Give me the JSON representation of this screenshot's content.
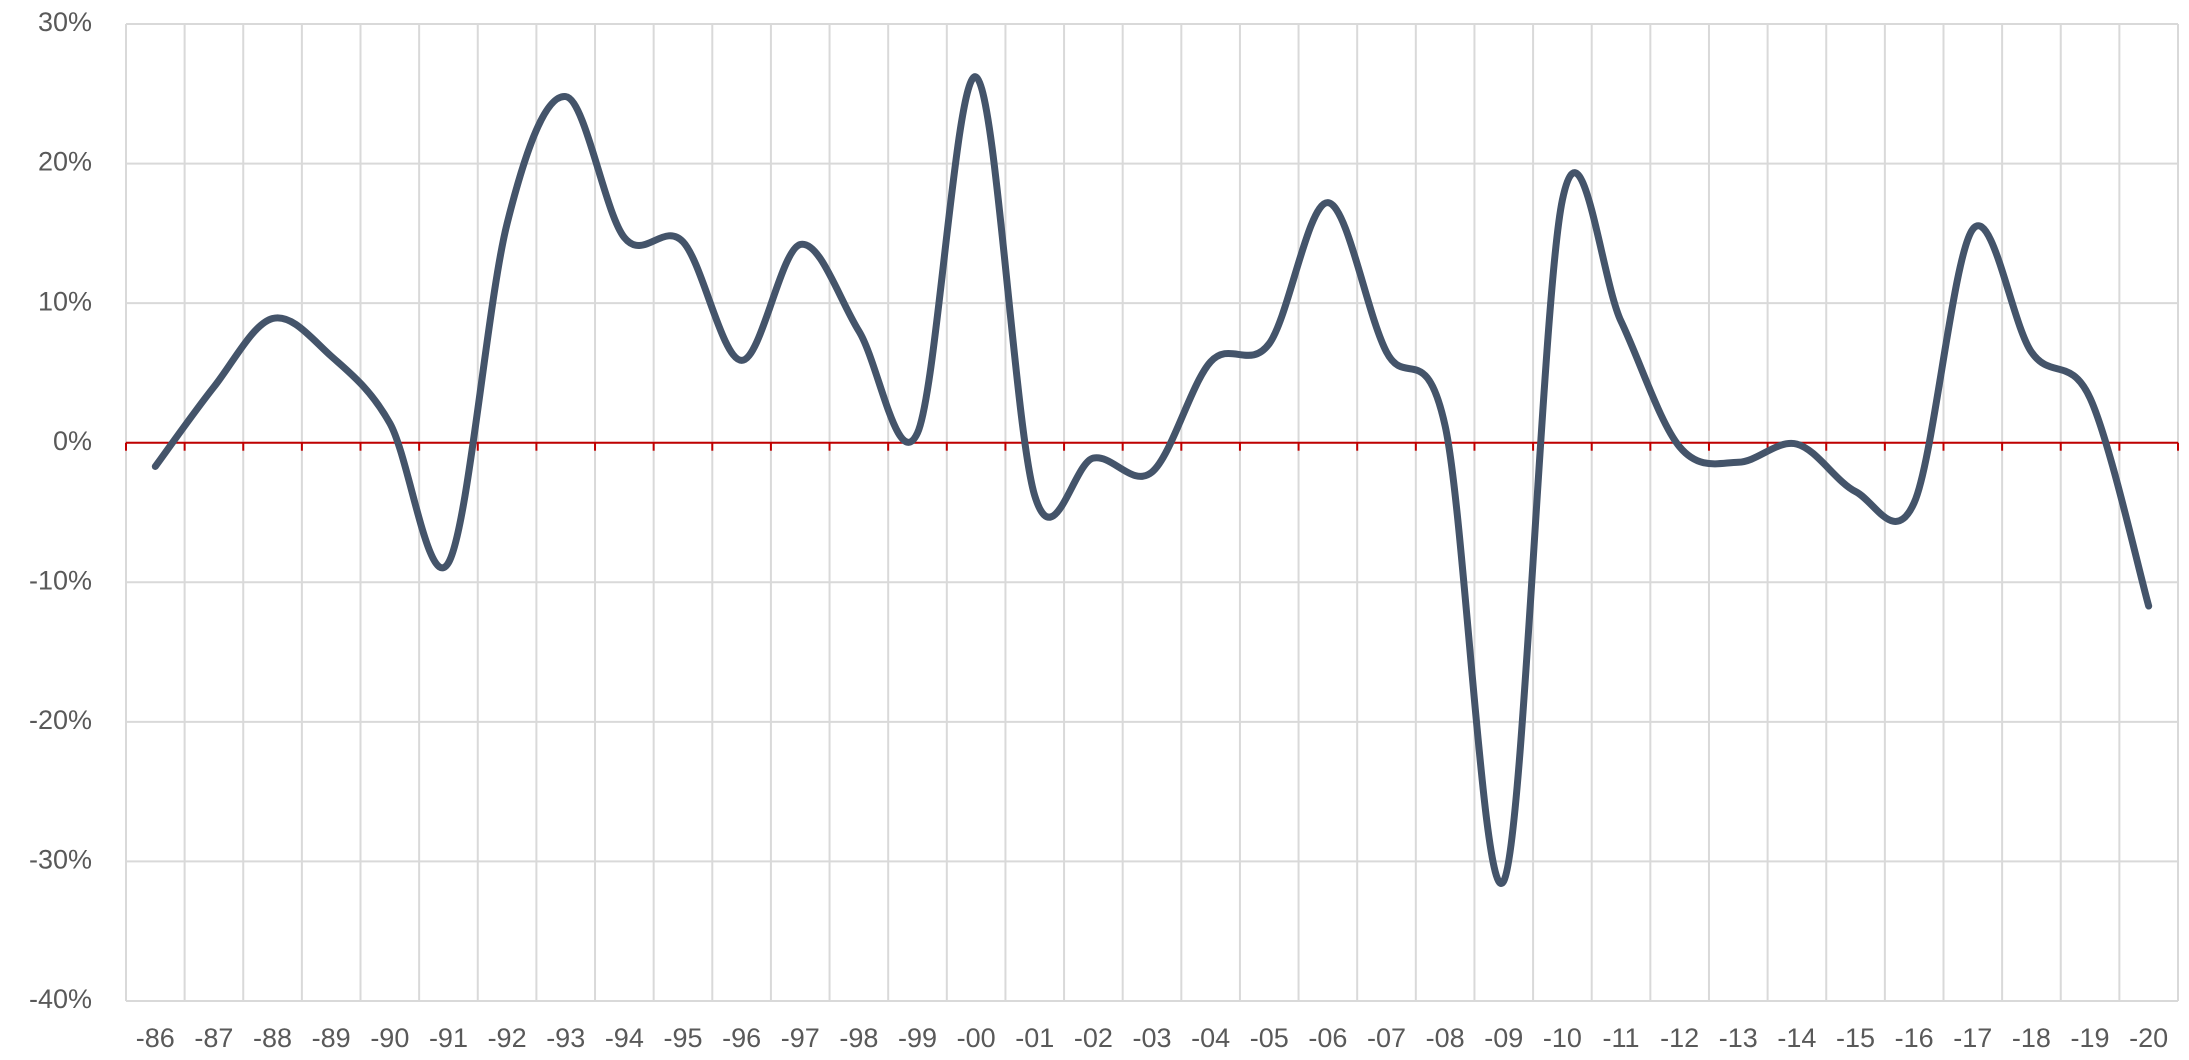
{
  "chart_data": {
    "type": "line",
    "categories": [
      "-86",
      "-87",
      "-88",
      "-89",
      "-90",
      "-91",
      "-92",
      "-93",
      "-94",
      "-95",
      "-96",
      "-97",
      "-98",
      "-99",
      "-00",
      "-01",
      "-02",
      "-03",
      "-04",
      "-05",
      "-06",
      "-07",
      "-08",
      "-09",
      "-10",
      "-11",
      "-12",
      "-13",
      "-14",
      "-15",
      "-16",
      "-17",
      "-18",
      "-19",
      "-20"
    ],
    "series": [
      {
        "color": "#44546a",
        "values": [
          -1.7,
          4.0,
          8.9,
          6.2,
          1.4,
          -8.6,
          15.7,
          24.8,
          14.7,
          14.4,
          5.9,
          14.2,
          8.0,
          0.7,
          26.2,
          -3.8,
          -1.1,
          -2.1,
          5.8,
          7.1,
          17.2,
          6.5,
          1.2,
          -31.4,
          17.4,
          8.7,
          -0.3,
          -1.4,
          -0.1,
          -3.5,
          -4.3,
          15.3,
          6.5,
          3.2,
          -11.7
        ]
      }
    ],
    "ylim": [
      -40,
      30
    ],
    "yticks": [
      {
        "value": -40,
        "label": "-40%"
      },
      {
        "value": -30,
        "label": "-30%"
      },
      {
        "value": -20,
        "label": "-20%"
      },
      {
        "value": -10,
        "label": "-10%"
      },
      {
        "value": 0,
        "label": "0%"
      },
      {
        "value": 10,
        "label": "10%"
      },
      {
        "value": 20,
        "label": "20%"
      },
      {
        "value": 30,
        "label": "30%"
      }
    ],
    "grid": true,
    "smooth": true,
    "axis_color": "#c00000"
  }
}
